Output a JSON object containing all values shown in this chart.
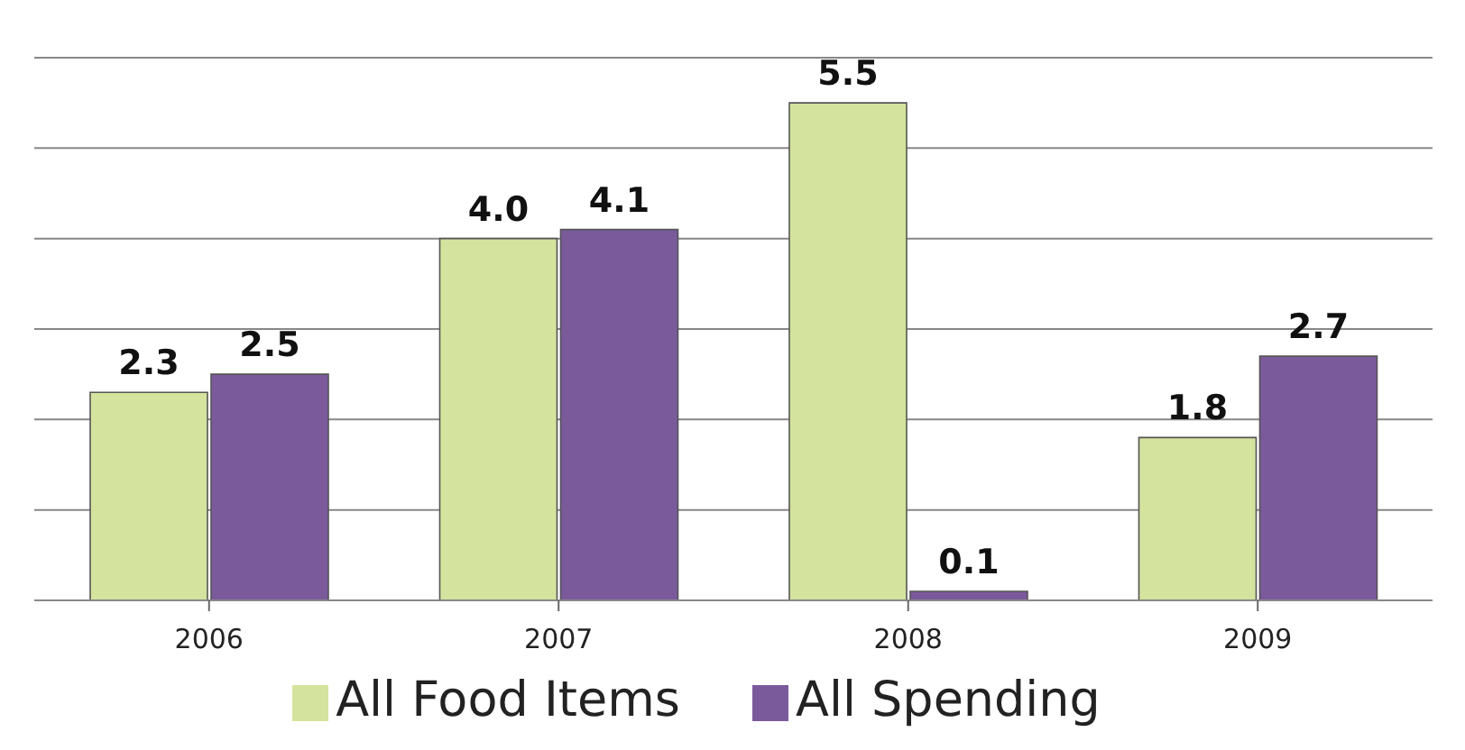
{
  "chart_data": {
    "type": "bar",
    "categories": [
      "2006",
      "2007",
      "2008",
      "2009"
    ],
    "series": [
      {
        "name": "All Food Items",
        "color": "#d4e39e",
        "values": [
          2.3,
          4.0,
          5.5,
          1.8
        ],
        "value_labels": [
          "2.3",
          "4.0",
          "5.5",
          "1.8"
        ]
      },
      {
        "name": "All Spending",
        "color": "#7b5a9c",
        "values": [
          2.5,
          4.1,
          0.1,
          2.7
        ],
        "value_labels": [
          "2.5",
          "4.1",
          "0.1",
          "2.7"
        ]
      }
    ],
    "ylim": [
      0,
      6
    ],
    "tick_labels": "x",
    "grid": "y",
    "legend": "bottom"
  }
}
